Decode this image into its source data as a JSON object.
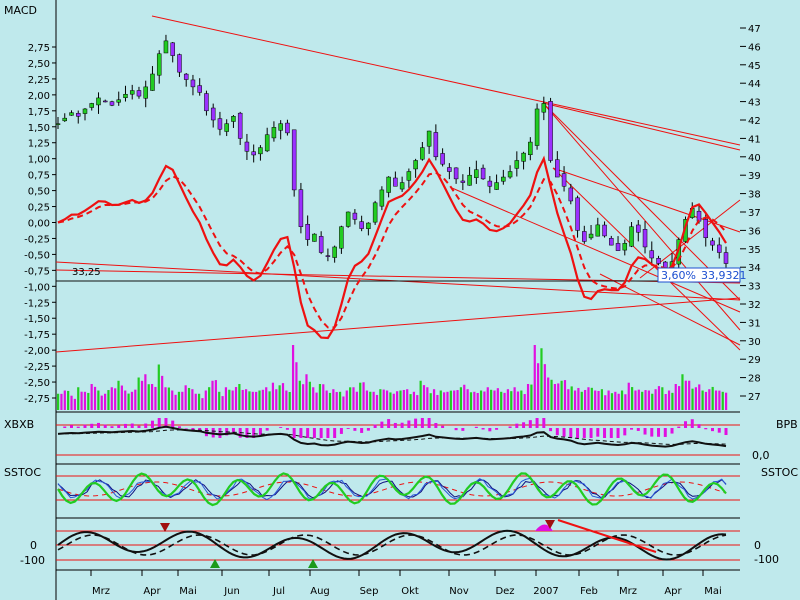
{
  "colors": {
    "background": "#bfe9ec",
    "red": "#ee1111",
    "black": "#111111",
    "green": "#22cc22",
    "magenta": "#e010e0",
    "purple": "#9b30ff",
    "navy": "#101080",
    "blue": "#2a58d8",
    "pink": "#ff80b0"
  },
  "labels": {
    "macd": "MACD",
    "xbxb": "XBXB",
    "bpb": "BPB",
    "bpb_zero": "0,0",
    "sstoc_left": "SSTOC",
    "sstoc_right": "SSTOC",
    "level_33_25": "33,25",
    "price_box": "33,9321",
    "pct_box": "3,60%"
  },
  "chart_data": [
    {
      "type": "candlestick",
      "title": "MACD",
      "y2_ticks": [
        47,
        46,
        45,
        44,
        43,
        42,
        41,
        40,
        39,
        38,
        37,
        36,
        35,
        34,
        33,
        32,
        31,
        30,
        29,
        28,
        27
      ],
      "y2lim": [
        27,
        47
      ],
      "y_left_ticks": [
        "2,75",
        "2,50",
        "2,25",
        "2,00",
        "1,75",
        "1,50",
        "1,25",
        "1,00",
        "0,75",
        "0,50",
        "0,25",
        "0,00",
        "-0,25",
        "-0,50",
        "-0,75",
        "-1,00",
        "-1,25",
        "-1,50",
        "-1,75",
        "-2,00",
        "-2,25",
        "-2,50",
        "-2,75"
      ],
      "ylim": [
        -2.75,
        2.75
      ],
      "x_ticks": [
        "Mrz",
        "Apr",
        "Mai",
        "Jun",
        "Jul",
        "Aug",
        "Sep",
        "Okt",
        "Nov",
        "Dez",
        "2007",
        "Feb",
        "Mrz",
        "Apr",
        "Mai"
      ],
      "close_approx": [
        41.8,
        42.1,
        42.4,
        42.2,
        42.6,
        42.9,
        43.2,
        43.0,
        42.8,
        43.1,
        43.4,
        43.6,
        43.3,
        43.8,
        44.5,
        45.6,
        46.3,
        45.5,
        44.6,
        44.2,
        43.8,
        43.5,
        42.5,
        42.0,
        41.5,
        41.8,
        42.2,
        41.0,
        40.3,
        40.1,
        40.5,
        41.2,
        41.6,
        41.8,
        41.3,
        38.2,
        36.2,
        35.5,
        35.8,
        34.8,
        34.6,
        35.1,
        36.2,
        37.0,
        36.6,
        36.1,
        36.4,
        37.5,
        38.2,
        38.9,
        38.4,
        38.6,
        39.2,
        39.8,
        40.5,
        41.4,
        40.0,
        39.6,
        39.2,
        38.8,
        38.6,
        39.0,
        39.3,
        38.8,
        38.4,
        38.6,
        38.9,
        39.2,
        39.8,
        40.2,
        40.8,
        42.6,
        42.9,
        39.8,
        38.9,
        38.4,
        37.6,
        36.0,
        35.4,
        35.8,
        36.3,
        35.7,
        35.2,
        34.9,
        35.3,
        36.2,
        35.9,
        35.1,
        34.5,
        34.2,
        33.9,
        34.3,
        35.5,
        36.6,
        37.2,
        36.5,
        35.6,
        35.2,
        34.8,
        34.2
      ],
      "volume_approx": [
        0.25,
        0.3,
        0.22,
        0.35,
        0.28,
        0.4,
        0.3,
        0.25,
        0.35,
        0.45,
        0.3,
        0.28,
        0.5,
        0.55,
        0.4,
        0.7,
        0.35,
        0.3,
        0.28,
        0.38,
        0.32,
        0.25,
        0.3,
        0.45,
        0.28,
        0.35,
        0.3,
        0.4,
        0.32,
        0.28,
        0.3,
        0.35,
        0.42,
        0.38,
        0.3,
        1.0,
        0.45,
        0.55,
        0.35,
        0.4,
        0.3,
        0.32,
        0.28,
        0.3,
        0.35,
        0.42,
        0.3,
        0.28,
        0.32,
        0.3,
        0.25,
        0.3,
        0.32,
        0.28,
        0.45,
        0.35,
        0.32,
        0.3,
        0.28,
        0.3,
        0.35,
        0.32,
        0.28,
        0.3,
        0.35,
        0.3,
        0.28,
        0.32,
        0.35,
        0.3,
        0.4,
        1.0,
        0.95,
        0.5,
        0.4,
        0.45,
        0.32,
        0.3,
        0.28,
        0.35,
        0.3,
        0.32,
        0.3,
        0.28,
        0.3,
        0.42,
        0.3,
        0.28,
        0.3,
        0.32,
        0.35,
        0.3,
        0.4,
        0.55,
        0.45,
        0.35,
        0.3,
        0.32,
        0.3,
        0.28
      ],
      "series": [
        {
          "values": "MACD line"
        },
        {
          "values": "signal line"
        }
      ],
      "annotations": [
        "33,25",
        "3,60%",
        "33,9321"
      ]
    },
    {
      "type": "bar",
      "title": "XBXB",
      "y2_ticks": [
        "0,0"
      ],
      "y2_label": "BPB"
    },
    {
      "type": "line",
      "title": "SSTOC",
      "y2_label": "SSTOC"
    },
    {
      "type": "line",
      "y_ticks": [
        "0",
        "-100"
      ],
      "y2_ticks": [
        "0",
        "-100"
      ]
    }
  ]
}
